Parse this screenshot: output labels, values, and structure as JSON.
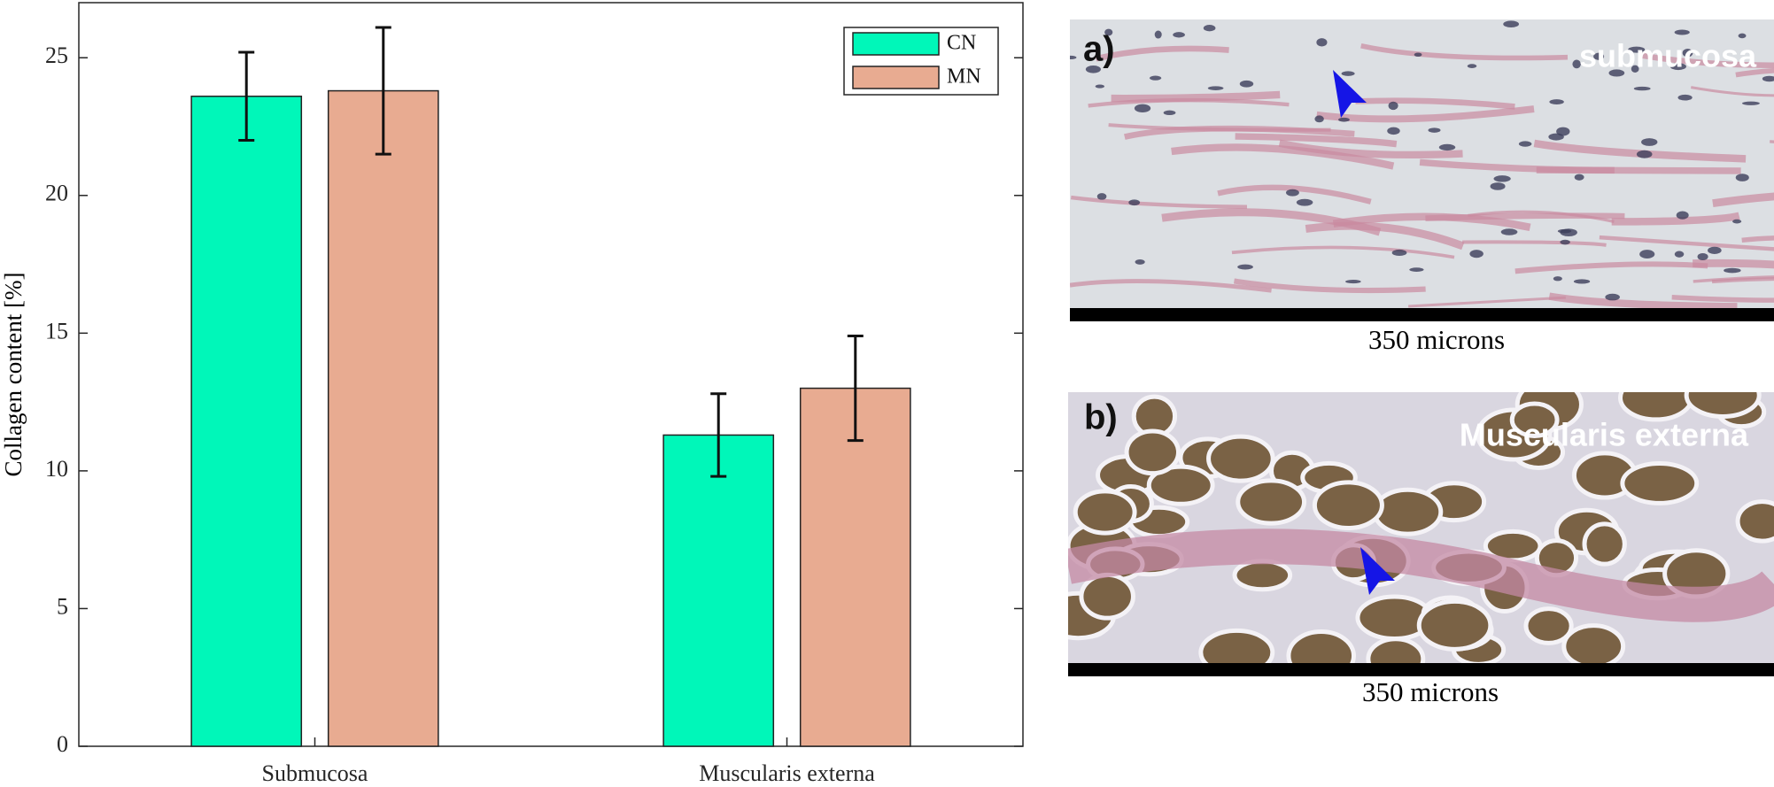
{
  "chart_data": {
    "type": "bar",
    "y_label": "Collagen content [%]",
    "categories": [
      "Submucosa",
      "Muscularis externa"
    ],
    "series": [
      {
        "name": "CN",
        "color": "#00f7b9",
        "values": [
          23.6,
          11.3
        ],
        "errors": [
          1.6,
          1.5
        ]
      },
      {
        "name": "MN",
        "color": "#e8ab91",
        "values": [
          23.8,
          13.0
        ],
        "errors": [
          2.3,
          1.9
        ]
      }
    ],
    "ylim": [
      0,
      27
    ],
    "yticks": [
      0,
      5,
      10,
      15,
      20,
      25
    ],
    "legend": "upper right"
  },
  "panels": [
    {
      "label": "a)",
      "title": "submucosa",
      "scale": "350 microns"
    },
    {
      "label": "b)",
      "title": "Muscularis externa",
      "scale": "350 microns"
    }
  ]
}
